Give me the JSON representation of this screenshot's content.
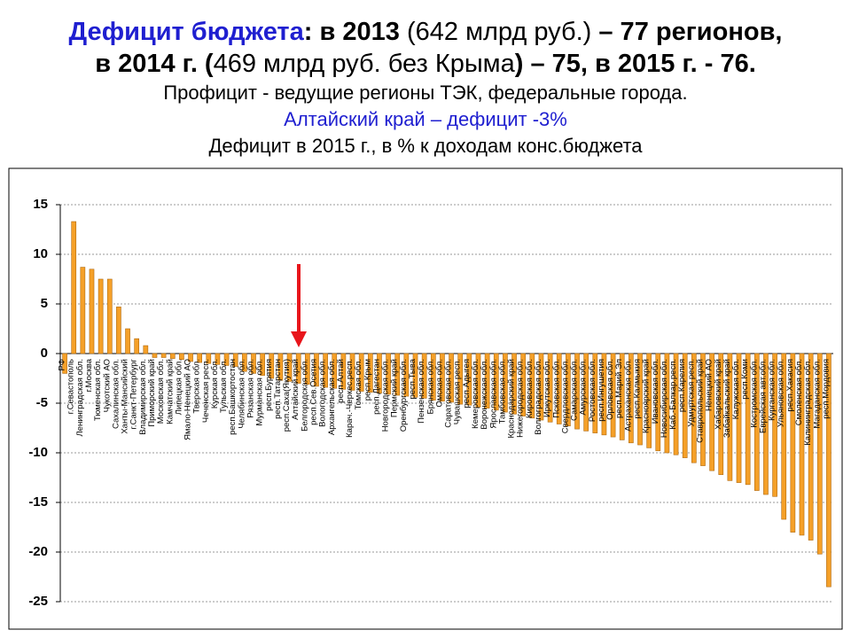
{
  "title_lines": [
    [
      {
        "text": "Дефицит бюджета",
        "bold": true,
        "color": "#1f1fd0"
      },
      {
        "text": ": в 2013",
        "bold": true
      },
      {
        "text": " (642 млрд руб.) ",
        "bold": false
      },
      {
        "text": "– 77 регионов,",
        "bold": true
      }
    ],
    [
      {
        "text": "в 2014 г. (",
        "bold": true
      },
      {
        "text": "469 млрд руб. без Крыма",
        "bold": false
      },
      {
        "text": ") – 75, в 2015 г. - 76.",
        "bold": true
      }
    ]
  ],
  "subtitle": "Профицит - ведущие регионы ТЭК, федеральные города.",
  "highlight": "Алтайский край – дефицит -3%",
  "chart_data": {
    "type": "bar",
    "title": "Дефицит в 2015 г., в % к доходам конс.бюджета",
    "categories": [
      "РФ",
      "г.Севастополь",
      "Ленинградская обл.",
      "г.Москва",
      "Тюменская обл.",
      "Чукотский АО",
      "Сахалинская обл.",
      "Ханты-Мансийский",
      "г.Санкт-Петербург",
      "Владимирская обл.",
      "Приморский край",
      "Московская обл.",
      "Камчатский край",
      "Липецкая обл.",
      "Ямало-Ненецкий АО",
      "Тверская обл.",
      "Чеченская респ.",
      "Курская обл.",
      "Тульская обл.",
      "респ.Башкортостан",
      "Челябинская обл.",
      "Рязанская обл.",
      "Мурманская обл.",
      "респ.Бурятия",
      "респ.Татарстан",
      "респ.Саха(Якутия)",
      "Алтайский край",
      "Белгородская обл.",
      "респ.Сев.Осетия",
      "Вологодская обл.",
      "Архангельская обл.",
      "респ.Алтай",
      "Карач.-Черкес.респ.",
      "Томская обл.",
      "респ.Крым",
      "респ.Дагестан",
      "Новгородская обл.",
      "Пермский край",
      "Оренбургская обл.",
      "респ.Тыва",
      "Пензенская обл.",
      "Брянская обл.",
      "Омская обл.",
      "Саратовская обл.",
      "Чувашская респ.",
      "респ.Адыгея",
      "Кемеровская обл.",
      "Воронежская обл.",
      "Ярославская обл.",
      "Тамбовская обл.",
      "Краснодарский край",
      "Нижегородская обл.",
      "Кировская обл.",
      "Волгоградская обл.",
      "Иркутская обл.",
      "Псковская обл.",
      "Свердловская обл.",
      "Самарская обл.",
      "Амурская обл.",
      "Ростовская обл.",
      "респ.Ингушетия",
      "Орловская обл.",
      "респ.Марий Эл",
      "Астраханская обл.",
      "респ.Калмыкия",
      "Красноярский край",
      "Ивановская обл.",
      "Новосибирская обл.",
      "Каб.-Балкар.респ.",
      "респ.Карелия",
      "Удмуртская респ.",
      "Ставропольский край",
      "Ненецкий АО",
      "Хабаровский край",
      "Забайкальский край",
      "Калужская обл.",
      "респ.Коми",
      "Костромская обл.",
      "Еврейская авт.обл.",
      "Курганская обл.",
      "Ульяновская обл.",
      "респ.Хакасия",
      "Смоленская обл.",
      "Калининградская обл.",
      "Магаданская обл.",
      "респ.Мордовия"
    ],
    "values": [
      -2,
      13.3,
      8.7,
      8.5,
      7.5,
      7.5,
      4.7,
      2.5,
      1.5,
      0.8,
      -0.4,
      -0.4,
      -0.5,
      -0.6,
      -0.8,
      -0.9,
      -1,
      -1.1,
      -1.2,
      -1.3,
      -1.8,
      -2,
      -2.2,
      -2.5,
      -2.7,
      -2.8,
      -3,
      -3.1,
      -3.3,
      -3.4,
      -3.5,
      -3.6,
      -3.7,
      -3.8,
      -3.9,
      -4,
      -4.1,
      -4.2,
      -4.3,
      -4.4,
      -4.5,
      -4.7,
      -4.8,
      -4.9,
      -5.1,
      -5.2,
      -5.4,
      -5.5,
      -5.7,
      -5.9,
      -6.1,
      -6.3,
      -6.5,
      -6.7,
      -6.9,
      -7.1,
      -7.3,
      -7.6,
      -7.8,
      -8,
      -8.2,
      -8.4,
      -8.7,
      -9,
      -9.2,
      -9.5,
      -9.8,
      -10,
      -10.2,
      -10.5,
      -11,
      -11.3,
      -11.8,
      -12.2,
      -12.8,
      -13,
      -13.2,
      -13.8,
      -14.2,
      -14.4,
      -16.7,
      -18,
      -18.3,
      -18.8,
      -20.2,
      -23.5
    ],
    "color": "#f5a028",
    "ylim": [
      -25,
      15
    ],
    "yticks": [
      -25,
      -20,
      -15,
      -10,
      -5,
      0,
      5,
      10,
      15
    ],
    "grid": true
  }
}
